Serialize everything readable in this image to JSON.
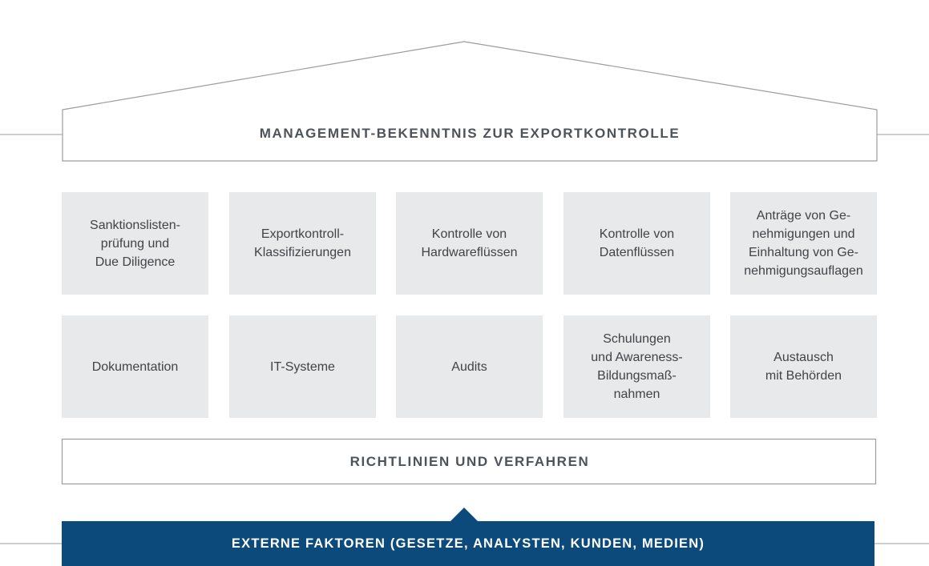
{
  "roof": {
    "title": "MANAGEMENT-BEKENNTNIS ZUR EXPORTKONTROLLE"
  },
  "pillars": [
    {
      "lines": [
        "Sanktionslisten-",
        "prüfung und",
        "Due Diligence"
      ]
    },
    {
      "lines": [
        "Exportkontroll-",
        "Klassifizierungen"
      ]
    },
    {
      "lines": [
        "Kontrolle von",
        "Hardwareflüssen"
      ]
    },
    {
      "lines": [
        "Kontrolle von",
        "Datenflüssen"
      ]
    },
    {
      "lines": [
        "Anträge von Ge-",
        "nehmigungen und",
        "Einhaltung von Ge-",
        "nehmigungsauflagen"
      ]
    },
    {
      "lines": [
        "Dokumentation"
      ]
    },
    {
      "lines": [
        "IT-Systeme"
      ]
    },
    {
      "lines": [
        "Audits"
      ]
    },
    {
      "lines": [
        "Schulungen",
        "und Awareness-",
        "Bildungsmaß-",
        "nahmen"
      ]
    },
    {
      "lines": [
        "Austausch",
        "mit Behörden"
      ]
    }
  ],
  "foundation": {
    "title": "RICHTLINIEN UND VERFAHREN"
  },
  "external": {
    "title": "EXTERNE FAKTOREN (GESETZE, ANALYSTEN, KUNDEN, MEDIEN)"
  },
  "colors": {
    "accent": "#0b4a7a",
    "tile": "#e8e9ea",
    "line": "#9a9da0",
    "text": "#4d5359"
  }
}
